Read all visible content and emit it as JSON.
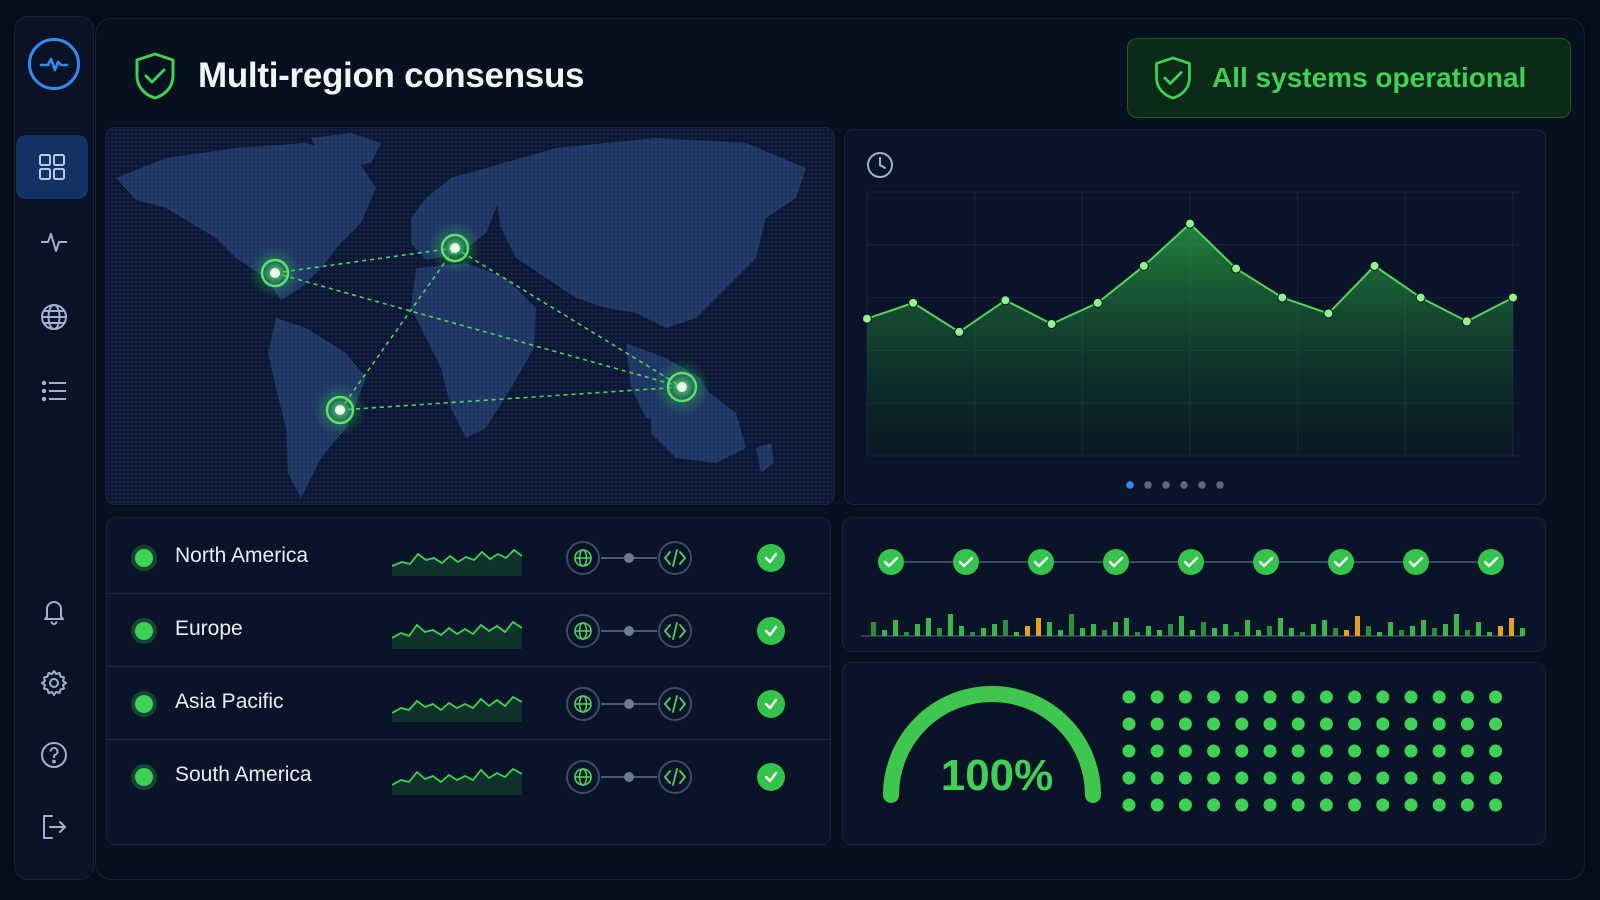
{
  "header": {
    "title": "Multi-region consensus",
    "status": "All systems operational"
  },
  "sidebar": {
    "items": [
      {
        "icon": "dashboard-grid-icon",
        "active": true
      },
      {
        "icon": "activity-pulse-icon"
      },
      {
        "icon": "globe-icon"
      },
      {
        "icon": "list-icon"
      },
      {
        "icon": "bell-icon"
      },
      {
        "icon": "settings-gear-icon"
      },
      {
        "icon": "help-circle-icon"
      },
      {
        "icon": "logout-icon"
      }
    ]
  },
  "map": {
    "nodes": [
      "north-america",
      "europe",
      "south-america",
      "asia-pacific"
    ]
  },
  "regions": [
    {
      "name": "North America",
      "status": "ok"
    },
    {
      "name": "Europe",
      "status": "ok"
    },
    {
      "name": "Asia Pacific",
      "status": "ok"
    },
    {
      "name": "South America",
      "status": "ok"
    }
  ],
  "chart_data": {
    "type": "area",
    "values": [
      52,
      58,
      47,
      59,
      50,
      58,
      72,
      88,
      71,
      60,
      54,
      72,
      60,
      51,
      60
    ],
    "ylim": [
      0,
      100
    ],
    "grid": true,
    "pager": {
      "pages": 6,
      "active": 0
    }
  },
  "sequence": {
    "steps": 9,
    "all_ok": true
  },
  "health": {
    "percent": "100%",
    "value": 1.0,
    "dots": 70
  },
  "colors": {
    "accent": "#3ed156",
    "brand": "#2f8cf5",
    "warn": "#e3a21a"
  }
}
